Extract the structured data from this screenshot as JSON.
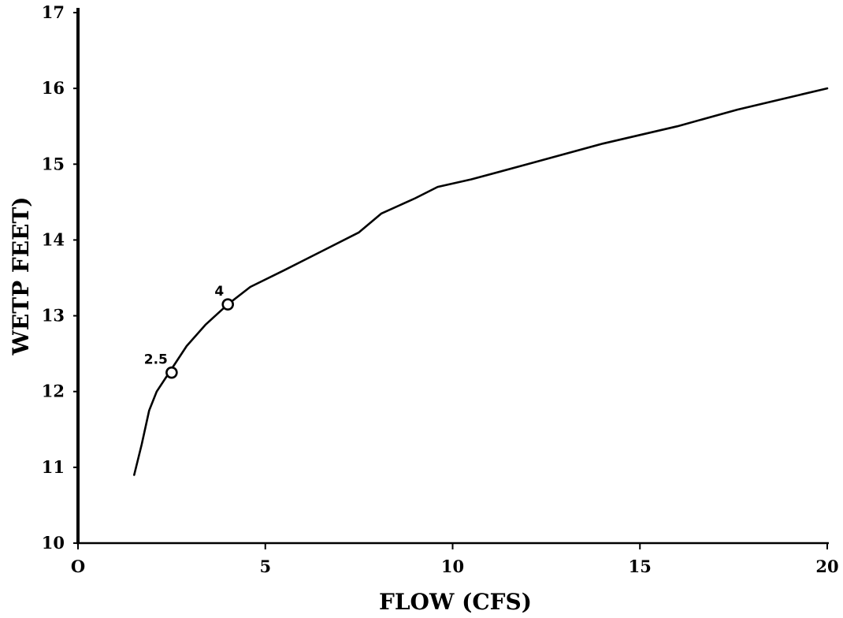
{
  "chart_data": {
    "type": "line",
    "title": "",
    "xlabel": "FLOW (CFS)",
    "ylabel": "WETP FEET)",
    "xlim": [
      0,
      20
    ],
    "ylim": [
      10,
      17
    ],
    "x_ticks": [
      0,
      5,
      10,
      15,
      20
    ],
    "x_tick_labels": [
      "O",
      "5",
      "10",
      "15",
      "20"
    ],
    "y_ticks": [
      10,
      11,
      12,
      13,
      14,
      15,
      16,
      17
    ],
    "y_tick_labels": [
      "10",
      "11",
      "12",
      "13",
      "14",
      "15",
      "16",
      "17"
    ],
    "grid": false,
    "series": [
      {
        "x": [
          1.5,
          1.7,
          1.9,
          2.1,
          2.5,
          2.9,
          3.4,
          4.0,
          4.6,
          5.5,
          6.5,
          7.5,
          8.1,
          9.0,
          9.6,
          10.5,
          12.0,
          14.0,
          16.0,
          17.6,
          20.0
        ],
        "y": [
          10.9,
          11.3,
          11.75,
          12.0,
          12.3,
          12.6,
          12.88,
          13.15,
          13.38,
          13.6,
          13.85,
          14.1,
          14.35,
          14.55,
          14.7,
          14.8,
          15.0,
          15.27,
          15.5,
          15.72,
          16.0
        ]
      }
    ],
    "annotations": [
      {
        "label": "2.5",
        "x": 2.5,
        "y": 12.25
      },
      {
        "label": "4",
        "x": 4.0,
        "y": 13.15
      }
    ]
  }
}
